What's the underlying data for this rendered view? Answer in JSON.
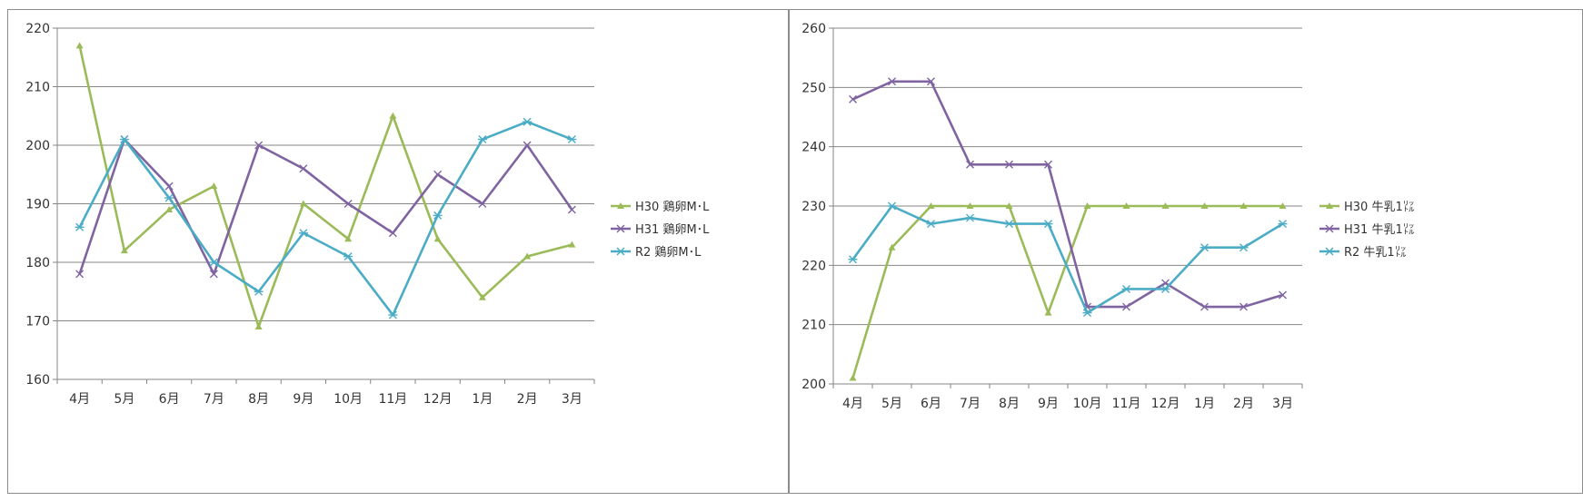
{
  "chart_data": [
    {
      "type": "line",
      "categories": [
        "4月",
        "5月",
        "6月",
        "7月",
        "8月",
        "9月",
        "10月",
        "11月",
        "12月",
        "1月",
        "2月",
        "3月"
      ],
      "ylim": [
        160,
        220
      ],
      "ytick_step": 10,
      "grid": true,
      "legend_placement": "right",
      "series": [
        {
          "name": "H30 鶏卵M･L",
          "color": "#9BBB59",
          "marker": "triangle",
          "values": [
            217,
            182,
            189,
            193,
            169,
            190,
            184,
            205,
            184,
            174,
            181,
            183
          ]
        },
        {
          "name": "H31 鶏卵M･L",
          "color": "#8064A2",
          "marker": "x",
          "values": [
            178,
            201,
            193,
            178,
            200,
            196,
            190,
            185,
            195,
            190,
            200,
            189
          ]
        },
        {
          "name": "R2 鶏卵M･L",
          "color": "#4BACC6",
          "marker": "star",
          "values": [
            186,
            201,
            191,
            180,
            175,
            185,
            181,
            171,
            188,
            201,
            204,
            201
          ]
        }
      ]
    },
    {
      "type": "line",
      "categories": [
        "4月",
        "5月",
        "6月",
        "7月",
        "8月",
        "9月",
        "10月",
        "11月",
        "12月",
        "1月",
        "2月",
        "3月"
      ],
      "ylim": [
        200,
        260
      ],
      "ytick_step": 10,
      "grid": true,
      "legend_placement": "right",
      "series": [
        {
          "name": "H30 牛乳1㍑",
          "color": "#9BBB59",
          "marker": "triangle",
          "values": [
            201,
            223,
            230,
            230,
            230,
            212,
            230,
            230,
            230,
            230,
            230,
            230
          ]
        },
        {
          "name": "H31 牛乳1㍑",
          "color": "#8064A2",
          "marker": "x",
          "values": [
            248,
            251,
            251,
            237,
            237,
            237,
            213,
            213,
            217,
            213,
            213,
            215
          ]
        },
        {
          "name": "R2 牛乳1㍑",
          "color": "#4BACC6",
          "marker": "star",
          "values": [
            221,
            230,
            227,
            228,
            227,
            227,
            212,
            216,
            216,
            223,
            223,
            227
          ]
        }
      ]
    }
  ]
}
